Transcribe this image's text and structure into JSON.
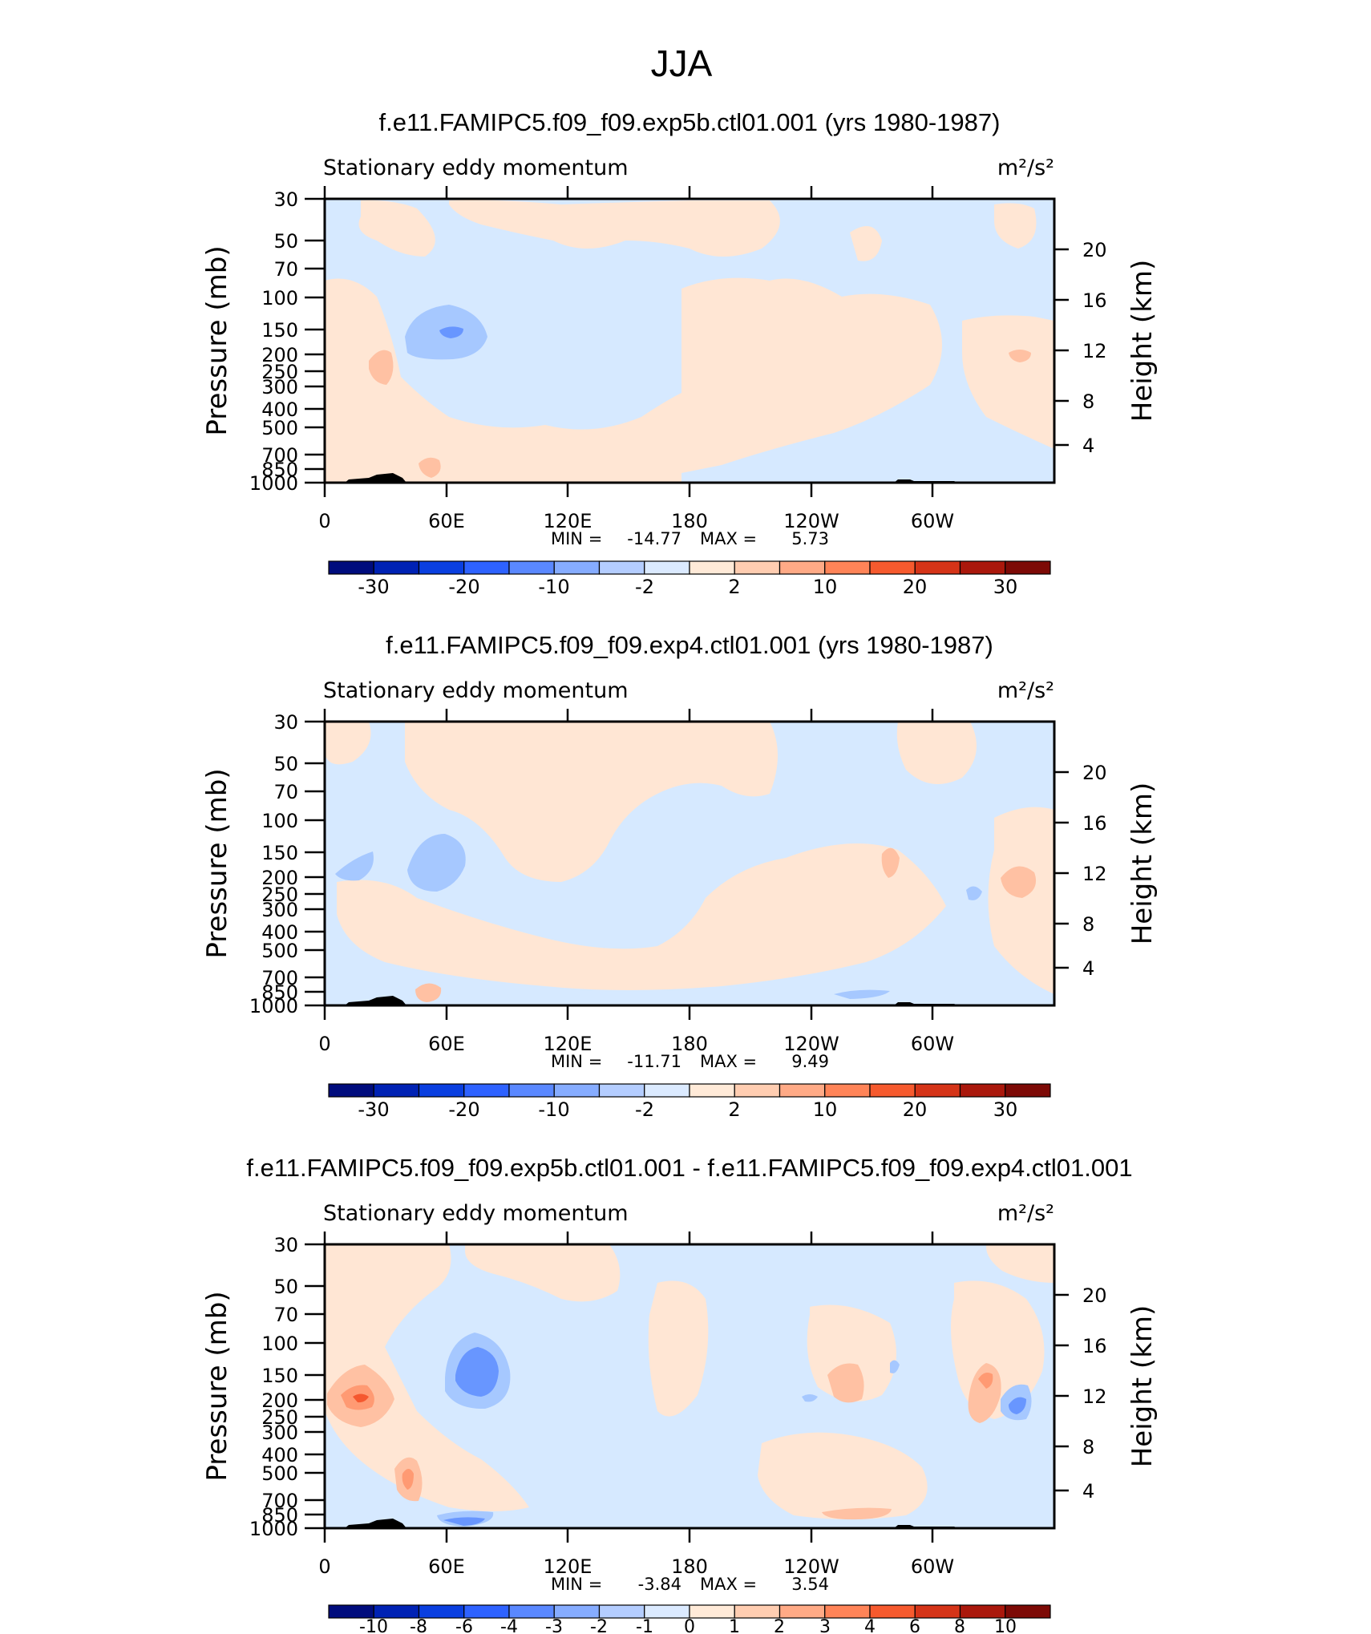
{
  "page_title": "JJA",
  "chart_data": [
    {
      "type": "heatmap",
      "title": "f.e11.FAMIPC5.f09_f09.exp5b.ctl01.001 (yrs 1980-1987)",
      "subtitle": "Stationary eddy momentum",
      "units": "m²/s²",
      "ylabel": "Pressure (mb)",
      "y2label": "Height (km)",
      "x_ticks": [
        "0",
        "60E",
        "120E",
        "180",
        "120W",
        "60W"
      ],
      "y_ticks": [
        "30",
        "50",
        "70",
        "100",
        "150",
        "200",
        "250",
        "300",
        "400",
        "500",
        "700",
        "850",
        "1000"
      ],
      "y2_ticks": [
        "20",
        "16",
        "12",
        "8",
        "4"
      ],
      "min_label": "MIN =",
      "min_value": "-14.77",
      "max_label": "MAX =",
      "max_value": "5.73",
      "colorbar_labels": [
        "-30",
        "-20",
        "-10",
        "-2",
        "2",
        "10",
        "20",
        "30"
      ],
      "features": [
        {
          "lon": 60,
          "p": 150,
          "value": -14.77
        },
        {
          "lon": 30,
          "p": 220,
          "value": 4
        },
        {
          "lon": 52,
          "p": 820,
          "value": 5.73
        },
        {
          "lon": 342,
          "p": 200,
          "value": 3
        }
      ]
    },
    {
      "type": "heatmap",
      "title": "f.e11.FAMIPC5.f09_f09.exp4.ctl01.001 (yrs 1980-1987)",
      "subtitle": "Stationary eddy momentum",
      "units": "m²/s²",
      "ylabel": "Pressure (mb)",
      "y2label": "Height (km)",
      "x_ticks": [
        "0",
        "60E",
        "120E",
        "180",
        "120W",
        "60W"
      ],
      "y_ticks": [
        "30",
        "50",
        "70",
        "100",
        "150",
        "200",
        "250",
        "300",
        "400",
        "500",
        "700",
        "850",
        "1000"
      ],
      "y2_ticks": [
        "20",
        "16",
        "12",
        "8",
        "4"
      ],
      "min_label": "MIN =",
      "min_value": "-11.71",
      "max_label": "MAX =",
      "max_value": "9.49",
      "colorbar_labels": [
        "-30",
        "-20",
        "-10",
        "-2",
        "2",
        "10",
        "20",
        "30"
      ],
      "features": [
        {
          "lon": 55,
          "p": 170,
          "value": -11.71
        },
        {
          "lon": 14,
          "p": 180,
          "value": -3
        },
        {
          "lon": 280,
          "p": 160,
          "value": 4
        },
        {
          "lon": 344,
          "p": 200,
          "value": 9.49
        },
        {
          "lon": 52,
          "p": 820,
          "value": 4
        }
      ]
    },
    {
      "type": "heatmap",
      "title": "f.e11.FAMIPC5.f09_f09.exp5b.ctl01.001 - f.e11.FAMIPC5.f09_f09.exp4.ctl01.001",
      "subtitle": "Stationary eddy momentum",
      "units": "m²/s²",
      "ylabel": "Pressure (mb)",
      "y2label": "Height (km)",
      "x_ticks": [
        "0",
        "60E",
        "120E",
        "180",
        "120W",
        "60W"
      ],
      "y_ticks": [
        "30",
        "50",
        "70",
        "100",
        "150",
        "200",
        "250",
        "300",
        "400",
        "500",
        "700",
        "850",
        "1000"
      ],
      "y2_ticks": [
        "20",
        "16",
        "12",
        "8",
        "4"
      ],
      "min_label": "MIN =",
      "min_value": "-3.84",
      "max_label": "MAX =",
      "max_value": "3.54",
      "colorbar_labels": [
        "-10",
        "-8",
        "-6",
        "-4",
        "-3",
        "-2",
        "-1",
        "0",
        "1",
        "2",
        "3",
        "4",
        "6",
        "8",
        "10"
      ],
      "features": [
        {
          "lon": 18,
          "p": 200,
          "value": 3.54
        },
        {
          "lon": 80,
          "p": 170,
          "value": -3.84
        },
        {
          "lon": 260,
          "p": 170,
          "value": 2
        },
        {
          "lon": 325,
          "p": 170,
          "value": 2.5
        },
        {
          "lon": 340,
          "p": 210,
          "value": -2.5
        },
        {
          "lon": 40,
          "p": 600,
          "value": 2.5
        },
        {
          "lon": 70,
          "p": 960,
          "value": -2
        }
      ]
    }
  ]
}
